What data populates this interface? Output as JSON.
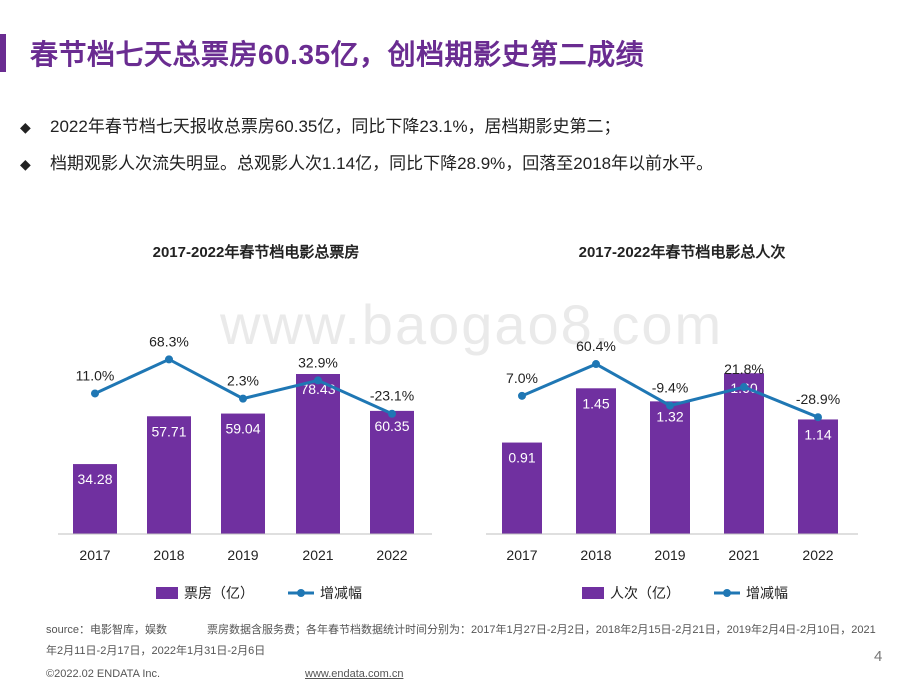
{
  "title": "春节档七天总票房60.35亿，创档期影史第二成绩",
  "bullets": [
    "2022年春节档七天报收总票房60.35亿，同比下降23.1%，居档期影史第二；",
    "档期观影人次流失明显。总观影人次1.14亿，同比下降28.9%，回落至2018年以前水平。"
  ],
  "bullet_symbol": "◆",
  "watermark": "www.baogao8.com",
  "source": {
    "label": "source：电影智库，娱数",
    "note": "票房数据含服务费；各年春节档数据统计时间分别为：2017年1月27日-2月2日，2018年2月15日-2月21日，2019年2月4日-2月10日，2021年2月11日-2月17日，2022年1月31日-2月6日"
  },
  "footer": {
    "copyright": "©2022.02  ENDATA Inc.",
    "url": "www.endata.com.cn",
    "page": "4"
  },
  "colors": {
    "bar": "#7030a0",
    "line": "#1f77b4",
    "title": "#6a2c91"
  },
  "chart_data": [
    {
      "type": "bar",
      "title": "2017-2022年春节档电影总票房",
      "categories": [
        "2017",
        "2018",
        "2019",
        "2021",
        "2022"
      ],
      "series": [
        {
          "name": "票房（亿）",
          "type": "bar",
          "values": [
            34.28,
            57.71,
            59.04,
            78.43,
            60.35
          ],
          "labels": [
            "34.28",
            "57.71",
            "59.04",
            "78.43",
            "60.35"
          ]
        },
        {
          "name": "增减幅",
          "type": "line",
          "values": [
            11.0,
            68.3,
            2.3,
            32.9,
            -23.1
          ],
          "labels": [
            "11.0%",
            "68.3%",
            "2.3%",
            "32.9%",
            "-23.1%"
          ]
        }
      ],
      "ylim_bar": [
        0,
        100
      ],
      "ylim_line": [
        -150,
        150
      ]
    },
    {
      "type": "bar",
      "title": "2017-2022年春节档电影总人次",
      "categories": [
        "2017",
        "2018",
        "2019",
        "2021",
        "2022"
      ],
      "series": [
        {
          "name": "人次（亿）",
          "type": "bar",
          "values": [
            0.91,
            1.45,
            1.32,
            1.6,
            1.14
          ],
          "labels": [
            "0.91",
            "1.45",
            "1.32",
            "1.60",
            "1.14"
          ]
        },
        {
          "name": "增减幅",
          "type": "line",
          "values": [
            7.0,
            60.4,
            -9.4,
            21.8,
            -28.9
          ],
          "labels": [
            "7.0%",
            "60.4%",
            "-9.4%",
            "21.8%",
            "-28.9%"
          ]
        }
      ],
      "ylim_bar": [
        0,
        2.05
      ],
      "ylim_line": [
        -150,
        150
      ]
    }
  ]
}
